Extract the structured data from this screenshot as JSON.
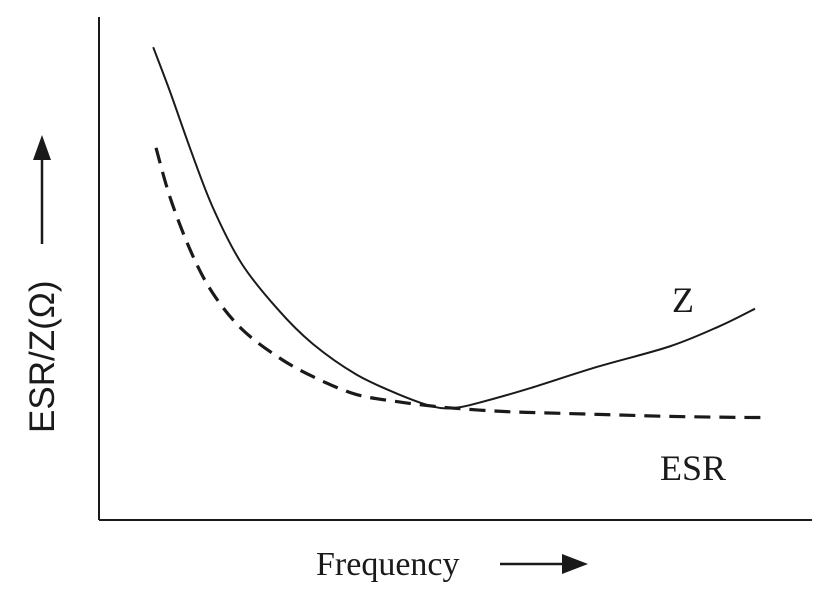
{
  "chart_data": {
    "type": "line",
    "title": "",
    "xlabel": "Frequency",
    "ylabel": "ESR/Z(Ω)",
    "xlim": [
      0,
      100
    ],
    "ylim": [
      0,
      100
    ],
    "grid": false,
    "legend": "none",
    "series": [
      {
        "name": "Z",
        "style": "solid",
        "color": "#1a1a1a",
        "x": [
          7.6,
          10,
          13,
          16,
          20,
          25,
          30,
          36,
          42,
          47,
          50,
          53,
          60,
          70,
          80,
          87,
          92
        ],
        "y": [
          94,
          85,
          73,
          62,
          51,
          42,
          35,
          29,
          25,
          22.5,
          22.3,
          23.2,
          26,
          30.5,
          34.5,
          38.5,
          42
        ]
      },
      {
        "name": "ESR",
        "style": "dashed",
        "color": "#1a1a1a",
        "x": [
          8,
          10,
          13,
          16,
          20,
          25,
          30,
          36,
          42,
          47,
          50,
          55,
          60,
          70,
          80,
          90,
          94
        ],
        "y": [
          74,
          64,
          53,
          45,
          38,
          32.5,
          28.5,
          25,
          23.5,
          22.6,
          22.2,
          21.7,
          21.4,
          21,
          20.6,
          20.4,
          20.4
        ]
      }
    ]
  }
}
